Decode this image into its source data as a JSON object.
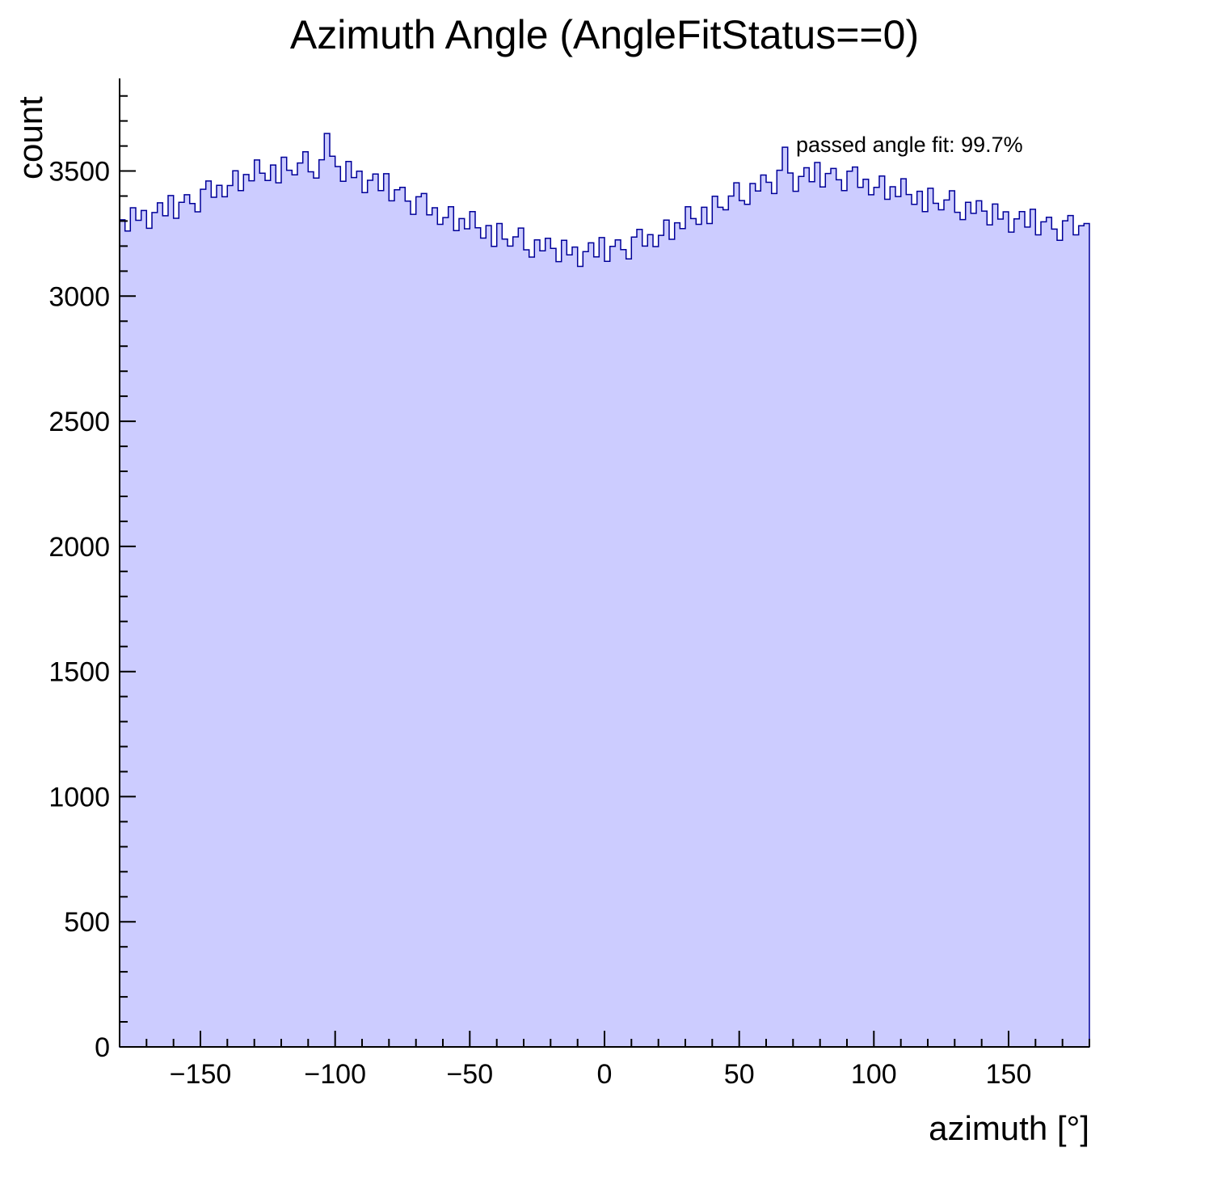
{
  "chart_data": {
    "type": "bar",
    "style": "histogram",
    "title": "Azimuth Angle (AngleFitStatus==0)",
    "xlabel": "azimuth [°]",
    "ylabel": "count",
    "annotation": "passed angle fit: 99.7%",
    "xlim": [
      -180,
      180
    ],
    "ylim": [
      0,
      3870
    ],
    "grid": false,
    "legend": "none",
    "x_ticks": [
      {
        "v": -150,
        "label": "−150"
      },
      {
        "v": -100,
        "label": "−100"
      },
      {
        "v": -50,
        "label": "−50"
      },
      {
        "v": 0,
        "label": "0"
      },
      {
        "v": 50,
        "label": "50"
      },
      {
        "v": 100,
        "label": "100"
      },
      {
        "v": 150,
        "label": "150"
      }
    ],
    "y_ticks": [
      {
        "v": 0,
        "label": "0"
      },
      {
        "v": 500,
        "label": "500"
      },
      {
        "v": 1000,
        "label": "1000"
      },
      {
        "v": 1500,
        "label": "1500"
      },
      {
        "v": 2000,
        "label": "2000"
      },
      {
        "v": 2500,
        "label": "2500"
      },
      {
        "v": 3000,
        "label": "3000"
      },
      {
        "v": 3500,
        "label": "3500"
      }
    ],
    "x_minor_step": 10,
    "y_minor_step": 100,
    "y_minor_max": 3800,
    "fill_color": "#ccccff",
    "line_color": "#000099",
    "axis_color": "#000000",
    "bin_start": -180,
    "bin_width": 2,
    "counts": [
      3305,
      3260,
      3353,
      3303,
      3342,
      3271,
      3334,
      3373,
      3321,
      3402,
      3311,
      3375,
      3405,
      3370,
      3337,
      3427,
      3460,
      3395,
      3443,
      3397,
      3442,
      3501,
      3422,
      3486,
      3461,
      3544,
      3491,
      3462,
      3524,
      3453,
      3555,
      3503,
      3485,
      3532,
      3577,
      3497,
      3472,
      3545,
      3650,
      3559,
      3518,
      3459,
      3538,
      3474,
      3499,
      3414,
      3463,
      3488,
      3422,
      3489,
      3381,
      3425,
      3435,
      3380,
      3327,
      3397,
      3410,
      3325,
      3353,
      3287,
      3314,
      3357,
      3262,
      3310,
      3269,
      3338,
      3273,
      3232,
      3282,
      3199,
      3290,
      3228,
      3200,
      3237,
      3272,
      3185,
      3156,
      3225,
      3181,
      3231,
      3191,
      3138,
      3223,
      3165,
      3196,
      3119,
      3178,
      3213,
      3157,
      3234,
      3139,
      3199,
      3225,
      3186,
      3149,
      3236,
      3267,
      3200,
      3246,
      3198,
      3243,
      3304,
      3227,
      3293,
      3270,
      3357,
      3310,
      3287,
      3355,
      3290,
      3399,
      3355,
      3345,
      3400,
      3453,
      3382,
      3367,
      3450,
      3420,
      3484,
      3455,
      3410,
      3503,
      3595,
      3492,
      3419,
      3478,
      3513,
      3457,
      3534,
      3436,
      3490,
      3510,
      3465,
      3422,
      3499,
      3516,
      3435,
      3467,
      3405,
      3435,
      3480,
      3387,
      3437,
      3398,
      3469,
      3406,
      3367,
      3419,
      3338,
      3431,
      3371,
      3345,
      3384,
      3421,
      3335,
      3306,
      3375,
      3331,
      3381,
      3340,
      3285,
      3368,
      3308,
      3337,
      3256,
      3309,
      3338,
      3276,
      3347,
      3245,
      3297,
      3315,
      3268,
      3223,
      3301,
      3322,
      3245,
      3281,
      3290
    ]
  }
}
